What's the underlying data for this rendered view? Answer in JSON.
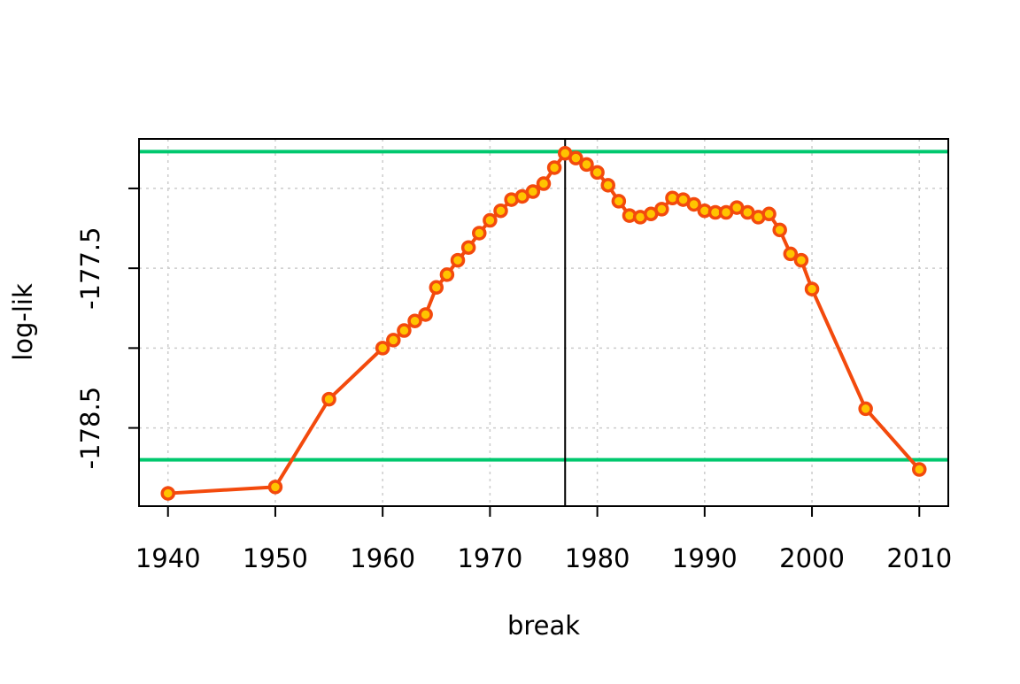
{
  "chart_data": {
    "type": "line",
    "title": "",
    "xlabel": "break",
    "ylabel": "log-lik",
    "xlim": [
      1937.3,
      2012.7
    ],
    "ylim": [
      -178.99,
      -176.69
    ],
    "x_ticks": [
      1940,
      1950,
      1960,
      1970,
      1980,
      1990,
      2000,
      2010
    ],
    "y_ticks": [
      -177.5,
      -178.5
    ],
    "y_tick_labels": [
      "-177.5",
      "-178.5"
    ],
    "y_gridlines": [
      -177.0,
      -177.5,
      -178.0,
      -178.5
    ],
    "grid": true,
    "colors": {
      "line": "#f34a0d",
      "point_fill": "#ffc400",
      "hline": "#00c86e",
      "vline": "#000000",
      "grid": "#cccccc"
    },
    "reference_lines": {
      "horizontal": [
        -176.77,
        -178.7
      ],
      "vertical": [
        1977
      ]
    },
    "series": [
      {
        "x": [
          1940,
          1950,
          1955,
          1960,
          1961,
          1962,
          1963,
          1964,
          1965,
          1966,
          1967,
          1968,
          1969,
          1970,
          1971,
          1972,
          1973,
          1974,
          1975,
          1976,
          1977,
          1978,
          1979,
          1980,
          1981,
          1982,
          1983,
          1984,
          1985,
          1986,
          1987,
          1988,
          1989,
          1990,
          1991,
          1992,
          1993,
          1994,
          1995,
          1996,
          1997,
          1998,
          1999,
          2000,
          2005,
          2010
        ],
        "values": [
          -178.91,
          -178.87,
          -178.32,
          -178.0,
          -177.95,
          -177.89,
          -177.83,
          -177.79,
          -177.62,
          -177.54,
          -177.45,
          -177.37,
          -177.28,
          -177.2,
          -177.14,
          -177.07,
          -177.05,
          -177.02,
          -176.97,
          -176.87,
          -176.78,
          -176.81,
          -176.85,
          -176.9,
          -176.98,
          -177.08,
          -177.17,
          -177.18,
          -177.16,
          -177.13,
          -177.06,
          -177.07,
          -177.1,
          -177.14,
          -177.15,
          -177.15,
          -177.12,
          -177.15,
          -177.18,
          -177.16,
          -177.26,
          -177.41,
          -177.45,
          -177.63,
          -178.38,
          -178.76
        ]
      }
    ]
  }
}
